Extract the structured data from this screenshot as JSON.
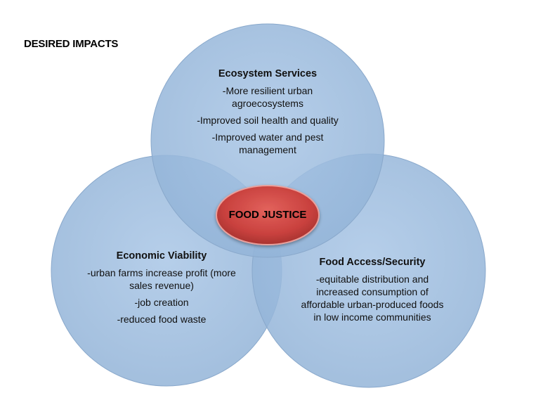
{
  "title": "DESIRED IMPACTS",
  "center": {
    "label": "FOOD JUSTICE",
    "color": "#c9413e"
  },
  "circles": {
    "top": {
      "heading": "Ecosystem Services",
      "items": [
        "-More resilient urban agroecosystems",
        "-Improved soil health and quality",
        "-Improved water and pest management"
      ]
    },
    "left": {
      "heading": "Economic Viability",
      "items": [
        "-urban farms increase profit (more sales revenue)",
        "-job creation",
        "-reduced food waste"
      ]
    },
    "right": {
      "heading": "Food Access/Security",
      "items": [
        "-equitable distribution and increased consumption of affordable urban-produced foods in low income communities"
      ]
    }
  },
  "colors": {
    "circle_fill": "#9dbbdc",
    "circle_stroke": "#8aa9cc",
    "overlap": "#6d93c0"
  }
}
